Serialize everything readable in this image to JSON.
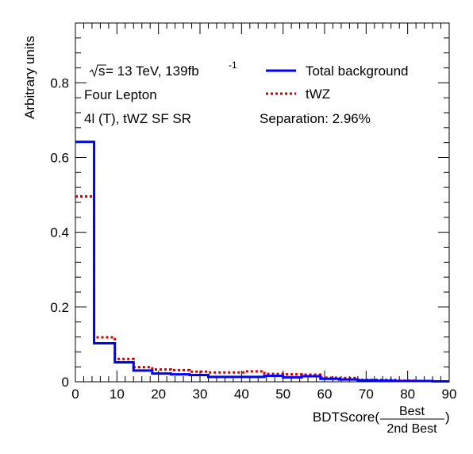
{
  "chart_data": {
    "type": "line",
    "ylabel": "Arbitrary units",
    "xlabel_prefix": "BDTScore(",
    "xlabel_frac_num": "Best",
    "xlabel_frac_den": "2nd Best",
    "xlabel_suffix": ")",
    "xlim": [
      0,
      90
    ],
    "ylim": [
      0,
      0.96
    ],
    "x_ticks": [
      0,
      10,
      20,
      30,
      40,
      50,
      60,
      70,
      80,
      90
    ],
    "x_tick_labels": [
      "0",
      "10",
      "20",
      "30",
      "40",
      "50",
      "60",
      "70",
      "80",
      "90"
    ],
    "y_ticks": [
      0,
      0.2,
      0.4,
      0.6,
      0.8
    ],
    "y_tick_labels": [
      "0",
      "0.2",
      "0.4",
      "0.6",
      "0.8"
    ],
    "bin_edges": [
      0,
      4.5,
      9.5,
      14,
      18.5,
      23,
      27.5,
      32,
      36.5,
      41,
      45.5,
      50,
      54.5,
      59,
      63.5,
      68,
      72.5,
      77,
      81.5,
      86,
      90
    ],
    "series": [
      {
        "name": "Total background",
        "color": "#0000ff",
        "style": "solid",
        "values": [
          0.642,
          0.103,
          0.052,
          0.03,
          0.022,
          0.02,
          0.018,
          0.013,
          0.013,
          0.013,
          0.016,
          0.012,
          0.015,
          0.008,
          0.006,
          0.004,
          0.003,
          0.002,
          0.002,
          0.001
        ]
      },
      {
        "name": "tWZ",
        "color": "#cc0000",
        "style": "dotted",
        "values": [
          0.496,
          0.119,
          0.061,
          0.039,
          0.033,
          0.031,
          0.027,
          0.025,
          0.025,
          0.028,
          0.021,
          0.02,
          0.019,
          0.011,
          0.01,
          0.005,
          0.005,
          0.003,
          0.002,
          0.001
        ]
      }
    ],
    "annotations": {
      "energy_prefix": "s",
      "energy_main": " = 13 TeV, 139fb",
      "energy_sup": "-1",
      "channel": "Four Lepton",
      "region": "4l (T), tWZ SF SR",
      "separation": "Separation: 2.96%"
    },
    "legend_position": "top-right",
    "grid": false
  }
}
